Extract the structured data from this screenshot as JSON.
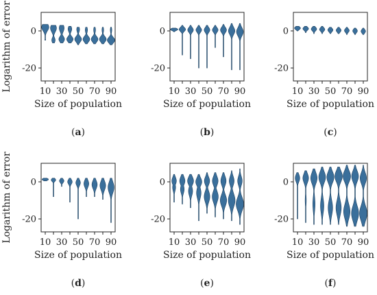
{
  "style": {
    "violin_fill": "#3a6f9b",
    "violin_stroke": "#1c3f5e",
    "axis_color": "#222222"
  },
  "chart_data": [
    {
      "type": "violin",
      "caption": "(a)",
      "xlabel": "Size of population",
      "ylabel": "Logarithm of error",
      "ylim": [
        -27,
        10
      ],
      "yticks": [
        0,
        -20
      ],
      "xticks": [
        10,
        30,
        50,
        70,
        90
      ],
      "x": [
        10,
        20,
        30,
        40,
        50,
        60,
        70,
        80,
        90
      ],
      "violins": [
        {
          "x": 10,
          "min": -5,
          "max": 3.5,
          "modes": [
            [
              2,
              0.95,
              2.0
            ],
            [
              -5,
              0.12,
              0.8
            ]
          ]
        },
        {
          "x": 20,
          "min": -6.5,
          "max": 3,
          "modes": [
            [
              1.5,
              0.8,
              2.0
            ],
            [
              -5,
              0.45,
              1.4
            ]
          ]
        },
        {
          "x": 30,
          "min": -6.5,
          "max": 3,
          "modes": [
            [
              1.5,
              0.65,
              2.0
            ],
            [
              -4.5,
              0.75,
              1.5
            ]
          ]
        },
        {
          "x": 40,
          "min": -6.5,
          "max": 2.5,
          "modes": [
            [
              1.0,
              0.5,
              1.5
            ],
            [
              -4.5,
              0.85,
              1.4
            ]
          ]
        },
        {
          "x": 50,
          "min": -7.5,
          "max": 2,
          "modes": [
            [
              0.8,
              0.38,
              1.5
            ],
            [
              -4.5,
              0.9,
              1.5
            ]
          ]
        },
        {
          "x": 60,
          "min": -7,
          "max": 2,
          "modes": [
            [
              0.5,
              0.3,
              1.5
            ],
            [
              -4.5,
              0.9,
              1.5
            ]
          ]
        },
        {
          "x": 70,
          "min": -7,
          "max": 2,
          "modes": [
            [
              0.5,
              0.25,
              1.5
            ],
            [
              -4.5,
              0.9,
              1.5
            ]
          ]
        },
        {
          "x": 80,
          "min": -7,
          "max": 2,
          "modes": [
            [
              0.5,
              0.22,
              1.5
            ],
            [
              -4.5,
              0.9,
              1.5
            ]
          ]
        },
        {
          "x": 90,
          "min": -7.5,
          "max": 2,
          "modes": [
            [
              0.5,
              0.2,
              1.5
            ],
            [
              -5,
              1.0,
              1.5
            ]
          ]
        }
      ]
    },
    {
      "type": "violin",
      "caption": "(b)",
      "xlabel": "Size of population",
      "ylim": [
        -27,
        10
      ],
      "yticks": [
        0,
        -20
      ],
      "xticks": [
        10,
        30,
        50,
        70,
        90
      ],
      "x": [
        10,
        20,
        30,
        40,
        50,
        60,
        70,
        80,
        90
      ],
      "violins": [
        {
          "x": 10,
          "min": -0.5,
          "max": 1.5,
          "modes": [
            [
              0.8,
              1.0,
              0.6
            ]
          ]
        },
        {
          "x": 20,
          "min": -13,
          "max": 3,
          "modes": [
            [
              0.8,
              0.85,
              1.1
            ]
          ]
        },
        {
          "x": 30,
          "min": -15,
          "max": 3,
          "modes": [
            [
              0.5,
              0.75,
              1.3
            ]
          ]
        },
        {
          "x": 40,
          "min": -20,
          "max": 3,
          "modes": [
            [
              0.5,
              0.75,
              1.3
            ]
          ]
        },
        {
          "x": 50,
          "min": -20,
          "max": 3,
          "modes": [
            [
              0.5,
              0.75,
              1.4
            ]
          ]
        },
        {
          "x": 60,
          "min": -9,
          "max": 3,
          "modes": [
            [
              0.5,
              0.75,
              1.3
            ]
          ]
        },
        {
          "x": 70,
          "min": -14,
          "max": 3.5,
          "modes": [
            [
              0.5,
              0.8,
              1.5
            ]
          ]
        },
        {
          "x": 80,
          "min": -21,
          "max": 4,
          "modes": [
            [
              0.0,
              0.85,
              2.0
            ]
          ]
        },
        {
          "x": 90,
          "min": -21,
          "max": 4,
          "modes": [
            [
              -0.5,
              0.9,
              2.2
            ]
          ]
        }
      ]
    },
    {
      "type": "violin",
      "caption": "(c)",
      "xlabel": "Size of population",
      "ylim": [
        -27,
        10
      ],
      "yticks": [
        0,
        -20
      ],
      "xticks": [
        10,
        30,
        50,
        70,
        90
      ],
      "x": [
        10,
        20,
        30,
        40,
        50,
        60,
        70,
        80,
        90
      ],
      "violins": [
        {
          "x": 10,
          "min": 0,
          "max": 2.5,
          "modes": [
            [
              1.5,
              0.8,
              0.8
            ]
          ]
        },
        {
          "x": 20,
          "min": -1,
          "max": 2.5,
          "modes": [
            [
              1.2,
              0.75,
              0.9
            ]
          ]
        },
        {
          "x": 30,
          "min": -1.5,
          "max": 2.5,
          "modes": [
            [
              1.0,
              0.72,
              1.0
            ]
          ]
        },
        {
          "x": 40,
          "min": -1.5,
          "max": 2.5,
          "modes": [
            [
              0.8,
              0.7,
              1.0
            ]
          ]
        },
        {
          "x": 50,
          "min": -1.5,
          "max": 2,
          "modes": [
            [
              0.5,
              0.68,
              1.0
            ]
          ]
        },
        {
          "x": 60,
          "min": -1.5,
          "max": 2,
          "modes": [
            [
              0.3,
              0.66,
              1.0
            ]
          ]
        },
        {
          "x": 70,
          "min": -2,
          "max": 2,
          "modes": [
            [
              0.2,
              0.64,
              1.0
            ]
          ]
        },
        {
          "x": 80,
          "min": -2,
          "max": 1.5,
          "modes": [
            [
              0.0,
              0.62,
              1.0
            ]
          ]
        },
        {
          "x": 90,
          "min": -2,
          "max": 1.5,
          "modes": [
            [
              -0.2,
              0.6,
              1.0
            ]
          ]
        }
      ]
    },
    {
      "type": "violin",
      "caption": "(d)",
      "xlabel": "Size of population",
      "ylabel": "Logarithm of error",
      "ylim": [
        -27,
        10
      ],
      "yticks": [
        0,
        -20
      ],
      "xticks": [
        10,
        30,
        50,
        70,
        90
      ],
      "x": [
        10,
        20,
        30,
        40,
        50,
        60,
        70,
        80,
        90
      ],
      "violins": [
        {
          "x": 10,
          "min": 0.5,
          "max": 2,
          "modes": [
            [
              1.3,
              0.85,
              0.6
            ]
          ]
        },
        {
          "x": 20,
          "min": -8,
          "max": 2,
          "modes": [
            [
              1.0,
              0.6,
              0.8
            ]
          ]
        },
        {
          "x": 30,
          "min": -2.5,
          "max": 2,
          "modes": [
            [
              0.5,
              0.6,
              1.0
            ]
          ]
        },
        {
          "x": 40,
          "min": -11,
          "max": 2,
          "modes": [
            [
              0.0,
              0.6,
              1.3
            ]
          ]
        },
        {
          "x": 50,
          "min": -20,
          "max": 2,
          "modes": [
            [
              -0.5,
              0.6,
              1.6
            ]
          ]
        },
        {
          "x": 60,
          "min": -8,
          "max": 2,
          "modes": [
            [
              -1.0,
              0.65,
              2.0
            ]
          ]
        },
        {
          "x": 70,
          "min": -8,
          "max": 2,
          "modes": [
            [
              -1.5,
              0.7,
              2.2
            ]
          ]
        },
        {
          "x": 80,
          "min": -9.5,
          "max": 2,
          "modes": [
            [
              -2.0,
              0.75,
              2.5
            ]
          ]
        },
        {
          "x": 90,
          "min": -22,
          "max": 2,
          "modes": [
            [
              -3.0,
              0.8,
              3.0
            ]
          ]
        }
      ]
    },
    {
      "type": "violin",
      "caption": "(e)",
      "xlabel": "Size of population",
      "ylim": [
        -27,
        10
      ],
      "yticks": [
        0,
        -20
      ],
      "xticks": [
        10,
        30,
        50,
        70,
        90
      ],
      "x": [
        10,
        20,
        30,
        40,
        50,
        60,
        70,
        80,
        90
      ],
      "violins": [
        {
          "x": 10,
          "min": -11,
          "max": 4,
          "modes": [
            [
              0.5,
              0.6,
              2.0
            ],
            [
              -3,
              0.4,
              2.0
            ]
          ]
        },
        {
          "x": 20,
          "min": -12,
          "max": 4,
          "modes": [
            [
              0.5,
              0.7,
              2.2
            ],
            [
              -4,
              0.5,
              2.2
            ]
          ]
        },
        {
          "x": 30,
          "min": -14,
          "max": 4,
          "modes": [
            [
              0.5,
              0.8,
              2.2
            ],
            [
              -5,
              0.55,
              2.5
            ]
          ]
        },
        {
          "x": 40,
          "min": -21,
          "max": 4,
          "modes": [
            [
              0.0,
              0.8,
              2.2
            ],
            [
              -6,
              0.6,
              3.0
            ]
          ]
        },
        {
          "x": 50,
          "min": -17,
          "max": 5,
          "modes": [
            [
              0.5,
              0.7,
              2.2
            ],
            [
              -8,
              0.75,
              3.0
            ]
          ]
        },
        {
          "x": 60,
          "min": -19,
          "max": 5,
          "modes": [
            [
              0.5,
              0.75,
              2.5
            ],
            [
              -8,
              0.8,
              3.0
            ]
          ]
        },
        {
          "x": 70,
          "min": -20,
          "max": 5,
          "modes": [
            [
              0.5,
              0.7,
              2.5
            ],
            [
              -10,
              0.85,
              3.0
            ]
          ]
        },
        {
          "x": 80,
          "min": -21,
          "max": 6,
          "modes": [
            [
              0.5,
              0.65,
              2.5
            ],
            [
              -10,
              0.9,
              3.5
            ]
          ]
        },
        {
          "x": 90,
          "min": -23,
          "max": 7,
          "modes": [
            [
              0.5,
              0.6,
              2.5
            ],
            [
              -12,
              1.0,
              3.5
            ]
          ]
        }
      ]
    },
    {
      "type": "violin",
      "caption": "(f)",
      "xlabel": "Size of population",
      "ylim": [
        -27,
        10
      ],
      "yticks": [
        0,
        -20
      ],
      "xticks": [
        10,
        30,
        50,
        70,
        90
      ],
      "x": [
        10,
        20,
        30,
        40,
        50,
        60,
        70,
        80,
        90
      ],
      "violins": [
        {
          "x": 10,
          "min": -20,
          "max": 5,
          "modes": [
            [
              2,
              0.6,
              2.0
            ]
          ]
        },
        {
          "x": 20,
          "min": -22,
          "max": 6,
          "modes": [
            [
              2,
              0.75,
              2.5
            ],
            [
              -10,
              0.15,
              3.0
            ]
          ]
        },
        {
          "x": 30,
          "min": -23,
          "max": 7,
          "modes": [
            [
              2,
              0.85,
              3.0
            ],
            [
              -12,
              0.3,
              4.0
            ]
          ]
        },
        {
          "x": 40,
          "min": -23,
          "max": 8,
          "modes": [
            [
              2.5,
              0.9,
              3.0
            ],
            [
              -13,
              0.45,
              4.0
            ]
          ]
        },
        {
          "x": 50,
          "min": -23,
          "max": 8,
          "modes": [
            [
              2.5,
              0.95,
              3.0
            ],
            [
              -14,
              0.6,
              4.0
            ]
          ]
        },
        {
          "x": 60,
          "min": -23,
          "max": 8,
          "modes": [
            [
              3,
              1.0,
              3.0
            ],
            [
              -14,
              0.7,
              4.0
            ]
          ]
        },
        {
          "x": 70,
          "min": -24,
          "max": 9,
          "modes": [
            [
              3,
              1.0,
              3.0
            ],
            [
              -16,
              0.85,
              4.0
            ]
          ]
        },
        {
          "x": 80,
          "min": -24,
          "max": 9,
          "modes": [
            [
              3,
              0.9,
              3.0
            ],
            [
              -17,
              0.95,
              4.0
            ]
          ]
        },
        {
          "x": 90,
          "min": -24,
          "max": 9,
          "modes": [
            [
              2,
              0.85,
              3.0
            ],
            [
              -17,
              1.0,
              4.0
            ]
          ]
        }
      ]
    }
  ]
}
